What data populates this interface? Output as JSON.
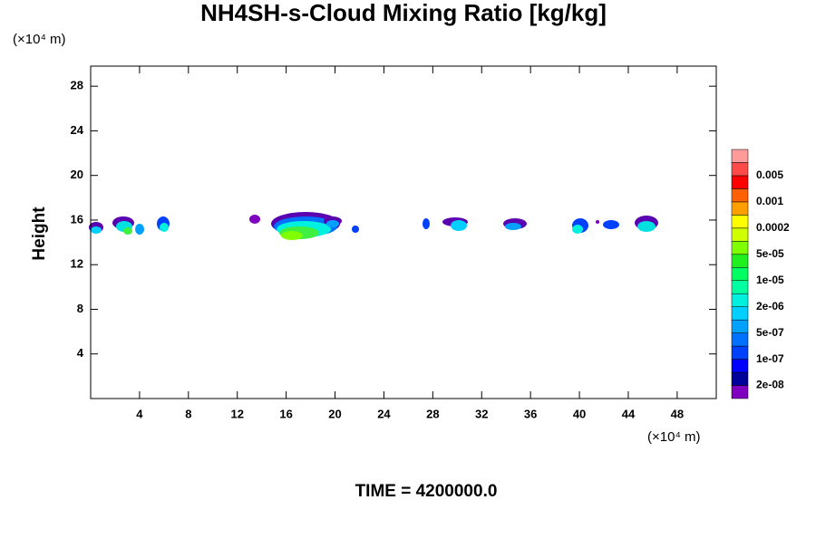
{
  "chart_data": {
    "type": "contour",
    "title": "NH4SH-s-Cloud Mixing Ratio [kg/kg]",
    "y_unit": "(×10⁴ m)",
    "x_unit": "(×10⁴ m)",
    "ylabel": "Height",
    "footer": "TIME = 4200000.0",
    "xlim": [
      0,
      51.2
    ],
    "xticks": [
      4,
      8,
      12,
      16,
      20,
      24,
      28,
      32,
      36,
      40,
      44,
      48
    ],
    "ylim": [
      0,
      29.8
    ],
    "yticks": [
      4,
      8,
      12,
      16,
      20,
      24,
      28
    ],
    "colorbar": {
      "colors": [
        "#7f00bf",
        "#00009a",
        "#0000ff",
        "#0040ff",
        "#0070ff",
        "#00a0ff",
        "#00d0ff",
        "#00f0e0",
        "#00ffa0",
        "#00ff60",
        "#20f020",
        "#80ff00",
        "#d0ff00",
        "#ffff00",
        "#ffa000",
        "#ff6000",
        "#ff0000",
        "#ff4a4a",
        "#ff9a9a"
      ],
      "levels": [
        {
          "value": 2e-08,
          "label": "2e-08"
        },
        {
          "value": 1e-07,
          "label": "1e-07"
        },
        {
          "value": 5e-07,
          "label": "5e-07"
        },
        {
          "value": 2e-06,
          "label": "2e-06"
        },
        {
          "value": 1e-05,
          "label": "1e-05"
        },
        {
          "value": 5e-05,
          "label": "5e-05"
        },
        0.0002,
        0.001,
        0.005
      ]
    }
  }
}
